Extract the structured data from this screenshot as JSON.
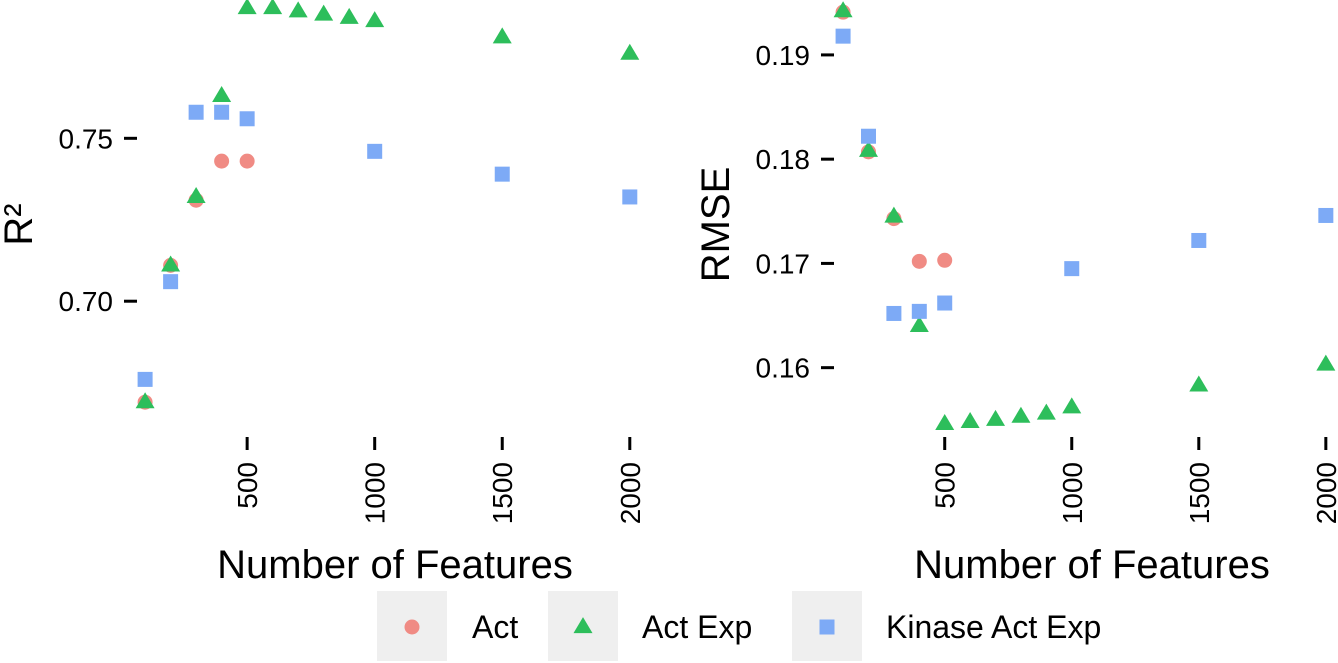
{
  "colors": {
    "Act": "#F08B84",
    "Act Exp": "#2DBE5B",
    "Kinase Act Exp": "#7DAAF6",
    "legend_key_bg": "#EFEFEF"
  },
  "legend": {
    "items": [
      {
        "label": "Act",
        "shape": "circle"
      },
      {
        "label": "Act Exp",
        "shape": "triangle"
      },
      {
        "label": "Kinase Act Exp",
        "shape": "square"
      }
    ]
  },
  "chart_data": [
    {
      "type": "scatter",
      "title": "",
      "xlabel": "Number of Features",
      "ylabel": "R²",
      "xlim": [
        80,
        2040
      ],
      "ylim": [
        0.662,
        0.79
      ],
      "xticks": [
        500,
        1000,
        1500,
        2000
      ],
      "xtick_labels": [
        "500",
        "1000",
        "1500",
        "2000"
      ],
      "yticks": [
        0.7,
        0.75
      ],
      "ytick_labels": [
        "0.70",
        "0.75"
      ],
      "grid": false,
      "series": [
        {
          "name": "Act",
          "x": [
            100,
            200,
            300,
            400,
            500
          ],
          "y": [
            0.669,
            0.711,
            0.731,
            0.743,
            0.743
          ]
        },
        {
          "name": "Act Exp",
          "x": [
            100,
            200,
            300,
            400,
            500,
            600,
            700,
            800,
            900,
            1000,
            1500,
            2000
          ],
          "y": [
            0.669,
            0.711,
            0.732,
            0.763,
            0.79,
            0.79,
            0.789,
            0.788,
            0.787,
            0.786,
            0.781,
            0.776
          ]
        },
        {
          "name": "Kinase Act Exp",
          "x": [
            100,
            200,
            300,
            400,
            500,
            1000,
            1500,
            2000
          ],
          "y": [
            0.676,
            0.706,
            0.758,
            0.758,
            0.756,
            0.746,
            0.739,
            0.732
          ]
        }
      ]
    },
    {
      "type": "scatter",
      "title": "",
      "xlabel": "Number of Features",
      "ylabel": "RMSE",
      "xlim": [
        80,
        2040
      ],
      "ylim": [
        0.1545,
        0.1945
      ],
      "xticks": [
        500,
        1000,
        1500,
        2000
      ],
      "xtick_labels": [
        "500",
        "1000",
        "1500",
        "2000"
      ],
      "yticks": [
        0.16,
        0.17,
        0.18,
        0.19
      ],
      "ytick_labels": [
        "0.16",
        "0.17",
        "0.18",
        "0.19"
      ],
      "grid": false,
      "series": [
        {
          "name": "Act",
          "x": [
            100,
            200,
            300,
            400,
            500
          ],
          "y": [
            0.1941,
            0.1807,
            0.1743,
            0.1702,
            0.1703
          ]
        },
        {
          "name": "Act Exp",
          "x": [
            100,
            200,
            300,
            400,
            500,
            600,
            700,
            800,
            900,
            1000,
            1500,
            2000
          ],
          "y": [
            0.1942,
            0.1808,
            0.1745,
            0.164,
            0.1546,
            0.1548,
            0.155,
            0.1553,
            0.1556,
            0.1562,
            0.1583,
            0.1603
          ]
        },
        {
          "name": "Kinase Act Exp",
          "x": [
            100,
            200,
            300,
            400,
            500,
            1000,
            1500,
            2000
          ],
          "y": [
            0.1918,
            0.1822,
            0.1652,
            0.1654,
            0.1662,
            0.1695,
            0.1722,
            0.1746
          ]
        }
      ]
    }
  ]
}
